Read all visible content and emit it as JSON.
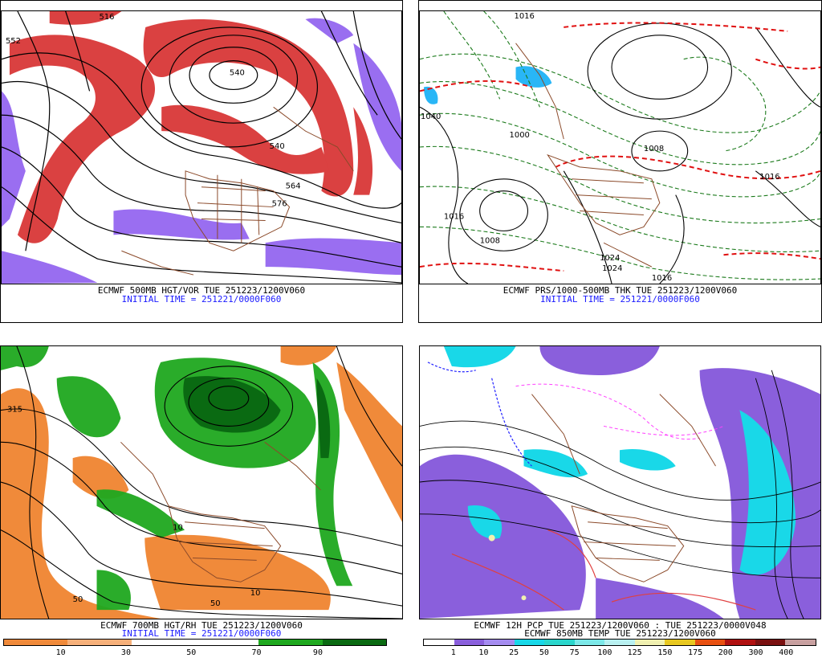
{
  "panels": {
    "top_left": {
      "caption": "ECMWF 500MB HGT/VOR TUE 251223/1200V060",
      "initial": "INITIAL TIME = 251221/0000F060",
      "contour_labels": [
        "516",
        "552",
        "540",
        "564",
        "576",
        "540"
      ]
    },
    "top_right": {
      "caption": "ECMWF PRS/1000-500MB THK TUE 251223/1200V060",
      "initial": "INITIAL TIME = 251221/0000F060",
      "contour_labels": [
        "1016",
        "1040",
        "1000",
        "1008",
        "1016",
        "1024",
        "1024",
        "1016",
        "1008",
        "1016"
      ]
    },
    "bottom_left": {
      "caption": "ECMWF 700MB HGT/RH TUE 251223/1200V060",
      "initial": "INITIAL TIME = 251221/0000F060",
      "contour_labels": [
        "315",
        "50",
        "10",
        "50",
        "10"
      ],
      "scale_labels": [
        "10",
        "30",
        "50",
        "70",
        "90"
      ],
      "scale_colors": [
        "#f08a3a",
        "#f6b07a",
        "#ffffff",
        "#ffffff",
        "#1fa81f",
        "#0a6a12"
      ]
    },
    "bottom_right": {
      "caption": "ECMWF 12H PCP TUE 251223/1200V060 : TUE 251223/0000V048",
      "caption2": "ECMWF 850MB TEMP TUE 251223/1200V060",
      "scale_labels": [
        "1",
        "10",
        "25",
        "50",
        "75",
        "100",
        "125",
        "150",
        "175",
        "200",
        "300",
        "400"
      ],
      "scale_colors": [
        "#ffffff",
        "#8a5fdc",
        "#a58cf0",
        "#19d8e8",
        "#2ad6cc",
        "#7ce8e8",
        "#b8f0f0",
        "#f0f0b0",
        "#e8c820",
        "#e85010",
        "#b01010",
        "#7a1010",
        "#c8a0a0"
      ]
    }
  },
  "colors": {
    "vorticity": "#d42020",
    "neg_vorticity": "#8855ee",
    "geography": "#8b4a2a",
    "thickness": "#1b7a1b",
    "cold_line": "#e01010",
    "caption_blue": "#1a1aff"
  }
}
